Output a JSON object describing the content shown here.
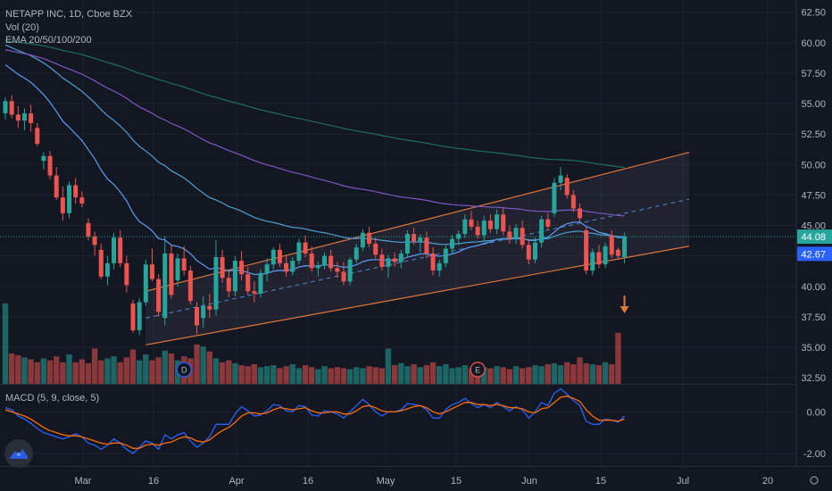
{
  "header": {
    "symbol_line": "NETAPP INC, 1D, Cboe BZX",
    "volume_label": "Vol (20)",
    "ema_label": "EMA 20/50/100/200",
    "macd_label": "MACD (5, 9, close, 5)"
  },
  "colors": {
    "background": "#131722",
    "up": "#26a69a",
    "down": "#ef5350",
    "ema20": "#5b9cf6",
    "ema50": "#4f9fd1",
    "ema100": "#7e57c2",
    "ema200": "#1f6f5c",
    "channel": "#e0763a",
    "macd": "#2962ff",
    "signal": "#ff6d00",
    "arrow": "#e0763a",
    "price_line": "#26a69a",
    "price_tag": "#26a69a",
    "ema_tag": "#2962ff"
  },
  "chart_data": [
    {
      "type": "candlestick",
      "title": "NETAPP INC, 1D, Cboe BZX",
      "y_axis": {
        "ticks": [
          "62.50",
          "60.00",
          "57.50",
          "55.00",
          "52.50",
          "50.00",
          "47.50",
          "45.00",
          "42.50",
          "40.00",
          "37.50",
          "35.00",
          "32.50"
        ],
        "ylim": [
          32.0,
          63.5
        ]
      },
      "x_axis": {
        "ticks": [
          "Mar",
          "16",
          "Apr",
          "16",
          "May",
          "15",
          "Jun",
          "15",
          "Jul",
          "20"
        ]
      },
      "last_price": "44.08",
      "ema_last": "42.67",
      "candles": [
        [
          54.2,
          55.5,
          53.7,
          55.2
        ],
        [
          55.2,
          55.7,
          53.8,
          54.1
        ],
        [
          54.1,
          54.8,
          53.0,
          53.6
        ],
        [
          53.6,
          54.6,
          52.8,
          54.2
        ],
        [
          54.2,
          54.9,
          52.7,
          53.4
        ],
        [
          53.0,
          53.4,
          51.5,
          51.7
        ],
        [
          50.3,
          51.0,
          49.6,
          50.7
        ],
        [
          50.7,
          51.1,
          48.8,
          49.1
        ],
        [
          49.1,
          49.8,
          47.1,
          47.3
        ],
        [
          47.3,
          48.2,
          45.4,
          46.0
        ],
        [
          46.0,
          48.6,
          45.6,
          48.3
        ],
        [
          48.3,
          48.9,
          46.8,
          47.3
        ],
        [
          47.3,
          47.8,
          46.5,
          46.8
        ],
        [
          45.2,
          45.6,
          43.8,
          44.1
        ],
        [
          44.1,
          44.5,
          42.5,
          43.4
        ],
        [
          43.0,
          43.5,
          40.6,
          40.8
        ],
        [
          40.8,
          42.5,
          40.1,
          41.9
        ],
        [
          41.9,
          44.4,
          41.4,
          44.0
        ],
        [
          44.0,
          44.6,
          41.6,
          41.9
        ],
        [
          41.9,
          42.5,
          39.5,
          40.1
        ],
        [
          38.6,
          38.9,
          36.2,
          36.4
        ],
        [
          36.4,
          39.0,
          36.0,
          38.7
        ],
        [
          38.7,
          42.2,
          38.4,
          41.8
        ],
        [
          41.8,
          43.1,
          40.4,
          40.6
        ],
        [
          40.6,
          41.0,
          37.5,
          37.9
        ],
        [
          37.4,
          44.1,
          36.8,
          42.7
        ],
        [
          42.7,
          43.4,
          39.0,
          39.3
        ],
        [
          40.5,
          42.7,
          40.0,
          42.3
        ],
        [
          42.3,
          43.3,
          40.9,
          41.3
        ],
        [
          41.3,
          41.7,
          38.5,
          38.8
        ],
        [
          38.3,
          38.7,
          36.1,
          36.8
        ],
        [
          37.4,
          39.2,
          36.6,
          38.4
        ],
        [
          38.4,
          39.4,
          37.4,
          38.1
        ],
        [
          38.1,
          43.8,
          37.6,
          42.4
        ],
        [
          42.4,
          43.0,
          40.3,
          40.7
        ],
        [
          40.7,
          41.4,
          39.1,
          39.6
        ],
        [
          39.6,
          42.5,
          39.2,
          42.1
        ],
        [
          42.1,
          42.9,
          40.5,
          41.0
        ],
        [
          41.0,
          41.6,
          39.3,
          39.6
        ],
        [
          39.6,
          40.4,
          38.7,
          39.4
        ],
        [
          39.4,
          41.4,
          39.1,
          41.1
        ],
        [
          41.1,
          42.3,
          40.4,
          41.8
        ],
        [
          41.8,
          43.2,
          41.4,
          43.0
        ],
        [
          43.0,
          43.5,
          41.6,
          41.9
        ],
        [
          41.9,
          42.5,
          40.8,
          41.2
        ],
        [
          41.2,
          42.4,
          40.9,
          42.1
        ],
        [
          42.1,
          43.9,
          41.8,
          43.6
        ],
        [
          43.6,
          44.2,
          42.4,
          42.7
        ],
        [
          42.7,
          43.3,
          41.2,
          41.5
        ],
        [
          41.5,
          42.0,
          40.8,
          41.7
        ],
        [
          41.7,
          42.8,
          41.4,
          42.5
        ],
        [
          42.5,
          43.0,
          41.2,
          41.5
        ],
        [
          41.5,
          42.0,
          40.7,
          41.2
        ],
        [
          41.2,
          42.0,
          40.1,
          40.4
        ],
        [
          40.4,
          42.4,
          40.1,
          42.2
        ],
        [
          42.2,
          43.5,
          41.9,
          43.2
        ],
        [
          43.2,
          44.7,
          42.9,
          44.4
        ],
        [
          44.4,
          44.9,
          43.2,
          43.5
        ],
        [
          43.5,
          44.0,
          42.3,
          42.6
        ],
        [
          42.6,
          43.1,
          41.3,
          41.6
        ],
        [
          41.6,
          42.6,
          40.7,
          42.3
        ],
        [
          42.3,
          42.8,
          41.6,
          42.0
        ],
        [
          42.0,
          43.0,
          41.5,
          42.7
        ],
        [
          42.7,
          44.6,
          42.4,
          44.3
        ],
        [
          44.3,
          44.8,
          43.4,
          43.7
        ],
        [
          43.7,
          44.3,
          42.8,
          44.0
        ],
        [
          44.0,
          44.5,
          42.3,
          42.7
        ],
        [
          42.7,
          43.2,
          40.9,
          41.3
        ],
        [
          41.3,
          42.2,
          40.8,
          41.9
        ],
        [
          41.9,
          43.4,
          41.6,
          43.1
        ],
        [
          43.1,
          44.2,
          42.7,
          43.9
        ],
        [
          43.9,
          44.6,
          43.4,
          44.3
        ],
        [
          44.3,
          45.9,
          44.0,
          45.5
        ],
        [
          45.5,
          46.2,
          44.6,
          44.9
        ],
        [
          44.9,
          45.4,
          43.9,
          44.2
        ],
        [
          44.2,
          45.8,
          43.8,
          45.4
        ],
        [
          45.4,
          45.9,
          44.4,
          44.7
        ],
        [
          44.7,
          46.3,
          44.3,
          45.9
        ],
        [
          45.9,
          46.4,
          44.2,
          44.5
        ],
        [
          44.5,
          45.0,
          43.5,
          43.9
        ],
        [
          43.9,
          45.1,
          43.5,
          44.8
        ],
        [
          44.8,
          45.4,
          43.1,
          43.4
        ],
        [
          43.4,
          43.8,
          41.8,
          42.2
        ],
        [
          42.2,
          44.0,
          41.9,
          43.6
        ],
        [
          43.6,
          45.8,
          43.2,
          45.5
        ],
        [
          45.5,
          46.0,
          44.6,
          44.9
        ],
        [
          46.0,
          48.9,
          45.7,
          48.5
        ],
        [
          48.5,
          49.8,
          47.9,
          49.1
        ],
        [
          48.9,
          49.2,
          47.2,
          47.5
        ],
        [
          47.5,
          47.9,
          46.1,
          46.4
        ],
        [
          46.4,
          46.8,
          45.3,
          45.6
        ],
        [
          44.6,
          44.9,
          41.0,
          41.3
        ],
        [
          41.3,
          43.1,
          40.9,
          42.8
        ],
        [
          42.8,
          43.4,
          41.5,
          41.8
        ],
        [
          41.8,
          43.6,
          41.5,
          43.3
        ],
        [
          44.2,
          44.6,
          42.3,
          42.6
        ],
        [
          43.0,
          43.2,
          42.3,
          42.5
        ],
        [
          42.4,
          44.4,
          41.9,
          44.1
        ]
      ],
      "volume_rel": [
        0.82,
        0.31,
        0.29,
        0.27,
        0.25,
        0.22,
        0.26,
        0.24,
        0.28,
        0.22,
        0.3,
        0.22,
        0.25,
        0.21,
        0.36,
        0.24,
        0.26,
        0.28,
        0.22,
        0.27,
        0.35,
        0.24,
        0.3,
        0.24,
        0.27,
        0.34,
        0.31,
        0.24,
        0.28,
        0.26,
        0.4,
        0.38,
        0.33,
        0.26,
        0.22,
        0.24,
        0.21,
        0.19,
        0.18,
        0.2,
        0.17,
        0.18,
        0.19,
        0.16,
        0.18,
        0.2,
        0.16,
        0.19,
        0.17,
        0.15,
        0.18,
        0.16,
        0.17,
        0.16,
        0.15,
        0.17,
        0.16,
        0.18,
        0.17,
        0.16,
        0.36,
        0.19,
        0.21,
        0.18,
        0.2,
        0.17,
        0.19,
        0.22,
        0.18,
        0.2,
        0.16,
        0.17,
        0.19,
        0.16,
        0.15,
        0.17,
        0.16,
        0.18,
        0.17,
        0.15,
        0.18,
        0.16,
        0.17,
        0.19,
        0.18,
        0.2,
        0.21,
        0.19,
        0.22,
        0.2,
        0.27,
        0.21,
        0.2,
        0.19,
        0.22,
        0.2,
        0.52
      ],
      "events": [
        {
          "label": "D",
          "index": 28
        },
        {
          "label": "E",
          "index": 74
        }
      ],
      "ema_lines": [
        "EMA 20",
        "EMA 50",
        "EMA 100",
        "EMA 200"
      ],
      "channel": {
        "start_index": 22,
        "lower": [
          35.2,
          43.3
        ],
        "upper": [
          39.6,
          51.0
        ],
        "dashed_mid_from": 60
      }
    },
    {
      "type": "line",
      "title": "MACD (5, 9, close, 5)",
      "y_axis": {
        "ticks": [
          "0.00",
          "-2.00"
        ],
        "ylim": [
          -2.6,
          1.3
        ]
      },
      "series": [
        {
          "name": "MACD",
          "values": [
            0.2,
            0.1,
            -0.2,
            -0.35,
            -0.55,
            -0.8,
            -1.0,
            -1.1,
            -1.2,
            -1.3,
            -1.2,
            -1.05,
            -1.2,
            -1.5,
            -1.6,
            -1.8,
            -1.6,
            -1.3,
            -1.5,
            -1.8,
            -2.0,
            -1.7,
            -1.4,
            -1.5,
            -1.8,
            -1.1,
            -1.3,
            -1.1,
            -1.0,
            -1.4,
            -1.7,
            -1.5,
            -1.2,
            -0.6,
            -0.6,
            -0.6,
            -0.1,
            0.25,
            0.05,
            -0.2,
            -0.15,
            0.05,
            0.35,
            0.3,
            0.05,
            0.0,
            0.3,
            0.25,
            -0.15,
            -0.2,
            0.05,
            0.0,
            -0.1,
            -0.3,
            0.0,
            0.3,
            0.6,
            0.35,
            0.0,
            -0.2,
            0.0,
            0.0,
            0.1,
            0.4,
            0.35,
            0.3,
            0.1,
            -0.3,
            -0.3,
            0.1,
            0.35,
            0.45,
            0.65,
            0.4,
            0.2,
            0.35,
            0.2,
            0.45,
            0.25,
            0.05,
            0.25,
            0.1,
            -0.3,
            0.0,
            0.45,
            0.3,
            0.9,
            1.1,
            0.85,
            0.55,
            0.3,
            -0.45,
            -0.6,
            -0.6,
            -0.35,
            -0.4,
            -0.5,
            -0.2
          ]
        },
        {
          "name": "Signal",
          "values": [
            0.1,
            0.0,
            -0.1,
            -0.2,
            -0.35,
            -0.55,
            -0.75,
            -0.9,
            -1.0,
            -1.1,
            -1.15,
            -1.15,
            -1.2,
            -1.3,
            -1.4,
            -1.5,
            -1.55,
            -1.5,
            -1.5,
            -1.6,
            -1.75,
            -1.75,
            -1.6,
            -1.55,
            -1.6,
            -1.5,
            -1.45,
            -1.3,
            -1.2,
            -1.25,
            -1.4,
            -1.45,
            -1.35,
            -1.1,
            -0.9,
            -0.75,
            -0.5,
            -0.2,
            -0.05,
            -0.05,
            -0.1,
            -0.05,
            0.1,
            0.2,
            0.15,
            0.1,
            0.15,
            0.2,
            0.05,
            -0.05,
            -0.05,
            0.0,
            0.0,
            -0.1,
            -0.1,
            0.05,
            0.25,
            0.3,
            0.2,
            0.05,
            0.0,
            0.0,
            0.05,
            0.15,
            0.25,
            0.3,
            0.2,
            0.0,
            -0.1,
            0.0,
            0.15,
            0.3,
            0.45,
            0.45,
            0.35,
            0.35,
            0.3,
            0.35,
            0.3,
            0.2,
            0.2,
            0.15,
            0.0,
            -0.05,
            0.15,
            0.2,
            0.45,
            0.7,
            0.75,
            0.65,
            0.5,
            0.1,
            -0.2,
            -0.4,
            -0.4,
            -0.4,
            -0.45,
            -0.35
          ]
        }
      ]
    }
  ]
}
